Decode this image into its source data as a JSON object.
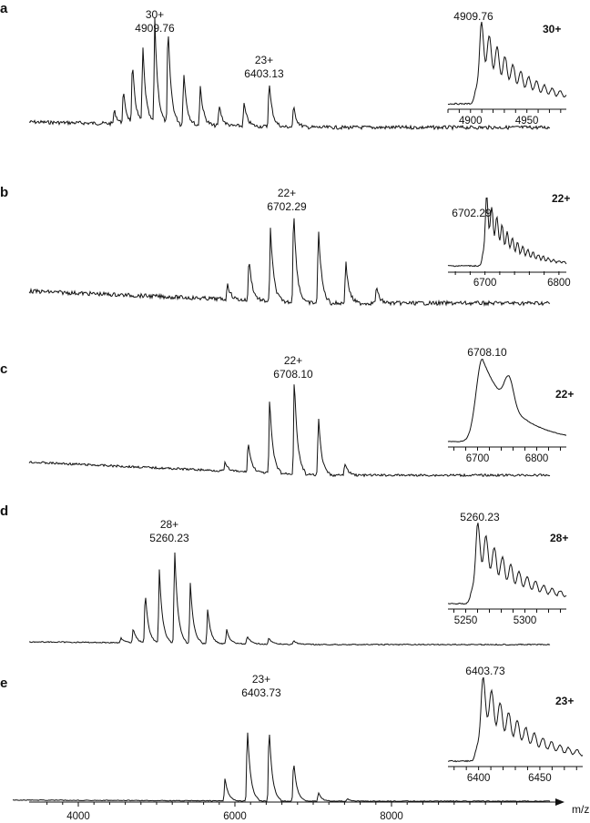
{
  "figure": {
    "x_axis_label": "m/z",
    "x_axis_ticks": [
      "4000",
      "6000",
      "8000"
    ],
    "colors": {
      "trace": "#111111",
      "background": "#ffffff"
    }
  },
  "chart_data": [
    {
      "panel": "a",
      "type": "line",
      "x_range": [
        3500,
        9800
      ],
      "peak_labels": [
        {
          "charge": "30+",
          "mz": "4909.76"
        },
        {
          "charge": "23+",
          "mz": "6403.13"
        }
      ],
      "series_x": [
        4530,
        4640,
        4750,
        4875,
        5020,
        5180,
        5370,
        5570,
        5800,
        6100,
        6403,
        6700
      ],
      "series_y": [
        0.12,
        0.28,
        0.52,
        0.68,
        0.92,
        0.88,
        0.48,
        0.35,
        0.18,
        0.2,
        0.4,
        0.18
      ],
      "inset": {
        "charge": "30+",
        "peak_label": "4909.76",
        "x_range": [
          4880,
          4985
        ],
        "ticks": [
          "4900",
          "4950"
        ],
        "tick_values": [
          4900,
          4950
        ]
      }
    },
    {
      "panel": "b",
      "type": "line",
      "x_range": [
        3500,
        9800
      ],
      "peak_labels": [
        {
          "charge": "22+",
          "mz": "6702.29"
        }
      ],
      "series_x": [
        5900,
        6160,
        6420,
        6700,
        7000,
        7330,
        7700
      ],
      "series_y": [
        0.15,
        0.4,
        0.68,
        0.88,
        0.72,
        0.4,
        0.15
      ],
      "inset": {
        "charge": "22+",
        "peak_label": "6702.29",
        "x_range": [
          6650,
          6810
        ],
        "ticks": [
          "6700",
          "6800"
        ],
        "tick_values": [
          6700,
          6800
        ]
      }
    },
    {
      "panel": "c",
      "type": "line",
      "x_range": [
        3500,
        9800
      ],
      "peak_labels": [
        {
          "charge": "22+",
          "mz": "6708.10"
        }
      ],
      "series_x": [
        5870,
        6150,
        6410,
        6708,
        7000,
        7320
      ],
      "series_y": [
        0.08,
        0.3,
        0.72,
        0.95,
        0.58,
        0.12
      ],
      "inset": {
        "charge": "22+",
        "peak_label": "6708.10",
        "x_range": [
          6650,
          6850
        ],
        "ticks": [
          "6700",
          "6800"
        ],
        "tick_values": [
          6700,
          6800
        ]
      }
    },
    {
      "panel": "d",
      "type": "line",
      "x_range": [
        3500,
        9800
      ],
      "peak_labels": [
        {
          "charge": "28+",
          "mz": "5260.23"
        }
      ],
      "series_x": [
        4610,
        4760,
        4905,
        5075,
        5260,
        5450,
        5660,
        5890,
        6140,
        6400,
        6700
      ],
      "series_y": [
        0.05,
        0.15,
        0.52,
        0.75,
        0.98,
        0.62,
        0.35,
        0.15,
        0.08,
        0.06,
        0.04
      ],
      "inset": {
        "charge": "28+",
        "peak_label": "5260.23",
        "x_range": [
          5235,
          5335
        ],
        "ticks": [
          "5250",
          "5300"
        ],
        "tick_values": [
          5250,
          5300
        ]
      }
    },
    {
      "panel": "e",
      "type": "line",
      "x_range": [
        3500,
        9800
      ],
      "peak_labels": [
        {
          "charge": "23+",
          "mz": "6403.73"
        }
      ],
      "series_x": [
        5870,
        6140,
        6403,
        6700,
        7000,
        7350
      ],
      "series_y": [
        0.25,
        0.82,
        0.82,
        0.45,
        0.1,
        0.03
      ],
      "inset": {
        "charge": "23+",
        "peak_label": "6403.73",
        "x_range": [
          6375,
          6485
        ],
        "ticks": [
          "6400",
          "6450"
        ],
        "tick_values": [
          6400,
          6450
        ]
      }
    }
  ]
}
